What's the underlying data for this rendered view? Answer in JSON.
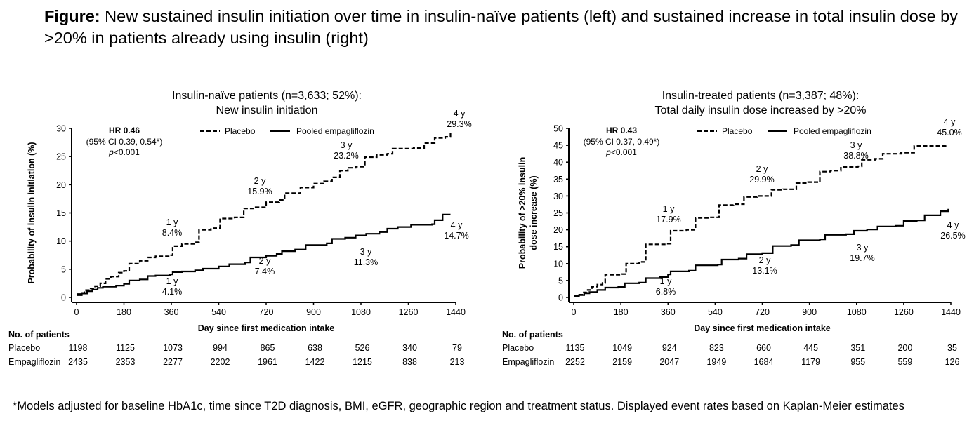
{
  "figure": {
    "title_bold": "Figure:",
    "title_text": " New sustained insulin initiation over time in insulin-naïve patients (left) and sustained increase in total insulin dose by >20% in patients already using insulin (right)",
    "footnote": "*Models adjusted for baseline HbA1c, time since T2D diagnosis, BMI, eGFR, geographic region and treatment status. Displayed event rates based on Kaplan-Meier estimates"
  },
  "chart_data": [
    {
      "type": "line",
      "title": [
        "Insulin-naïve patients (n=3,633; 52%):",
        "New insulin initiation"
      ],
      "xlabel": "Day since first medication intake",
      "ylabel": [
        "Probability of insulin initiation (%)"
      ],
      "xlim": [
        0,
        1440
      ],
      "ylim": [
        0,
        30
      ],
      "xticks": [
        0,
        180,
        360,
        540,
        720,
        900,
        1080,
        1260,
        1440
      ],
      "yticks": [
        0,
        5,
        10,
        15,
        20,
        25,
        30
      ],
      "legend": {
        "position": "top",
        "items": [
          {
            "name": "Placebo",
            "style": "dashed"
          },
          {
            "name": "Pooled empagliflozin",
            "style": "solid"
          }
        ]
      },
      "stats": {
        "hr": "HR 0.46",
        "ci": "(95% CI 0.39, 0.54*)",
        "p_italic": "p",
        "p_rest": "<0.001"
      },
      "series": [
        {
          "name": "Placebo",
          "style": "dashed",
          "points": [
            [
              0,
              0.6
            ],
            [
              20,
              0.8
            ],
            [
              30,
              1.3
            ],
            [
              50,
              1.6
            ],
            [
              70,
              2.0
            ],
            [
              90,
              2.5
            ],
            [
              110,
              3.3
            ],
            [
              130,
              3.7
            ],
            [
              160,
              4.4
            ],
            [
              180,
              4.7
            ],
            [
              200,
              6.0
            ],
            [
              240,
              6.5
            ],
            [
              270,
              7.1
            ],
            [
              300,
              7.3
            ],
            [
              355,
              7.5
            ],
            [
              365,
              9.1
            ],
            [
              400,
              9.5
            ],
            [
              450,
              9.8
            ],
            [
              465,
              12.0
            ],
            [
              510,
              12.3
            ],
            [
              545,
              14.0
            ],
            [
              600,
              14.2
            ],
            [
              635,
              15.8
            ],
            [
              680,
              16.0
            ],
            [
              720,
              16.9
            ],
            [
              770,
              17.3
            ],
            [
              790,
              18.5
            ],
            [
              850,
              19.5
            ],
            [
              900,
              20.2
            ],
            [
              940,
              20.6
            ],
            [
              970,
              21.3
            ],
            [
              1000,
              22.5
            ],
            [
              1030,
              23.0
            ],
            [
              1060,
              23.2
            ],
            [
              1095,
              24.9
            ],
            [
              1140,
              25.3
            ],
            [
              1180,
              25.5
            ],
            [
              1200,
              26.4
            ],
            [
              1280,
              26.5
            ],
            [
              1320,
              27.4
            ],
            [
              1360,
              28.3
            ],
            [
              1400,
              28.5
            ],
            [
              1420,
              29.3
            ]
          ]
        },
        {
          "name": "Pooled empagliflozin",
          "style": "solid",
          "points": [
            [
              0,
              0.4
            ],
            [
              20,
              0.7
            ],
            [
              40,
              1.1
            ],
            [
              60,
              1.4
            ],
            [
              80,
              1.7
            ],
            [
              100,
              1.9
            ],
            [
              150,
              2.1
            ],
            [
              180,
              2.4
            ],
            [
              200,
              3.0
            ],
            [
              240,
              3.2
            ],
            [
              270,
              3.8
            ],
            [
              300,
              3.9
            ],
            [
              355,
              4.1
            ],
            [
              365,
              4.5
            ],
            [
              400,
              4.6
            ],
            [
              450,
              4.8
            ],
            [
              480,
              5.1
            ],
            [
              540,
              5.5
            ],
            [
              580,
              5.9
            ],
            [
              640,
              6.2
            ],
            [
              660,
              7.1
            ],
            [
              720,
              7.4
            ],
            [
              760,
              7.7
            ],
            [
              780,
              8.2
            ],
            [
              830,
              8.5
            ],
            [
              870,
              9.3
            ],
            [
              950,
              9.6
            ],
            [
              970,
              10.4
            ],
            [
              1020,
              10.6
            ],
            [
              1060,
              11.0
            ],
            [
              1100,
              11.3
            ],
            [
              1150,
              11.6
            ],
            [
              1180,
              12.2
            ],
            [
              1220,
              12.5
            ],
            [
              1270,
              12.9
            ],
            [
              1350,
              13.0
            ],
            [
              1360,
              13.7
            ],
            [
              1390,
              14.7
            ],
            [
              1420,
              14.7
            ]
          ]
        }
      ],
      "annotations": [
        {
          "series": "Placebo",
          "label": "1 y",
          "value": "8.4%"
        },
        {
          "series": "Placebo",
          "label": "2 y",
          "value": "15.9%"
        },
        {
          "series": "Placebo",
          "label": "3 y",
          "value": "23.2%"
        },
        {
          "series": "Placebo",
          "label": "4 y",
          "value": "29.3%"
        },
        {
          "series": "Pooled empagliflozin",
          "label": "1 y",
          "value": "4.1%"
        },
        {
          "series": "Pooled empagliflozin",
          "label": "2 y",
          "value": "7.4%"
        },
        {
          "series": "Pooled empagliflozin",
          "label": "3 y",
          "value": "11.3%"
        },
        {
          "series": "Pooled empagliflozin",
          "label": "4 y",
          "value": "14.7%"
        }
      ],
      "risk_table": {
        "title": "No. of patients",
        "rows": [
          {
            "label": "Placebo",
            "values": [
              1198,
              1125,
              1073,
              994,
              865,
              638,
              526,
              340,
              79
            ]
          },
          {
            "label": "Empagliflozin",
            "values": [
              2435,
              2353,
              2277,
              2202,
              1961,
              1422,
              1215,
              838,
              213
            ]
          }
        ]
      }
    },
    {
      "type": "line",
      "title": [
        "Insulin-treated patients (n=3,387; 48%):",
        "Total daily insulin dose increased by >20%"
      ],
      "xlabel": "Day since first medication intake",
      "ylabel": [
        "Probability of >20% insulin",
        "dose increase (%)"
      ],
      "xlim": [
        0,
        1440
      ],
      "ylim": [
        0,
        50
      ],
      "xticks": [
        0,
        180,
        360,
        540,
        720,
        900,
        1080,
        1260,
        1440
      ],
      "yticks": [
        0,
        5,
        10,
        15,
        20,
        25,
        30,
        35,
        40,
        45,
        50
      ],
      "legend": {
        "position": "top",
        "items": [
          {
            "name": "Placebo",
            "style": "dashed"
          },
          {
            "name": "Pooled empagliflozin",
            "style": "solid"
          }
        ]
      },
      "stats": {
        "hr": "HR 0.43",
        "ci": "(95% CI 0.37, 0.49*)",
        "p_italic": "p",
        "p_rest": "<0.001"
      },
      "series": [
        {
          "name": "Placebo",
          "style": "dashed",
          "points": [
            [
              0,
              0.5
            ],
            [
              20,
              0.8
            ],
            [
              35,
              1.5
            ],
            [
              50,
              2.2
            ],
            [
              70,
              3.2
            ],
            [
              90,
              3.8
            ],
            [
              110,
              4.3
            ],
            [
              120,
              6.7
            ],
            [
              185,
              6.9
            ],
            [
              200,
              10.0
            ],
            [
              250,
              10.5
            ],
            [
              275,
              15.7
            ],
            [
              355,
              15.9
            ],
            [
              370,
              19.7
            ],
            [
              430,
              20.0
            ],
            [
              465,
              23.5
            ],
            [
              520,
              23.7
            ],
            [
              555,
              27.3
            ],
            [
              610,
              27.6
            ],
            [
              650,
              29.7
            ],
            [
              700,
              30.0
            ],
            [
              755,
              31.8
            ],
            [
              800,
              32.0
            ],
            [
              850,
              33.8
            ],
            [
              895,
              34.1
            ],
            [
              940,
              37.2
            ],
            [
              980,
              37.5
            ],
            [
              1020,
              38.6
            ],
            [
              1085,
              38.8
            ],
            [
              1100,
              40.7
            ],
            [
              1150,
              41.0
            ],
            [
              1180,
              42.5
            ],
            [
              1250,
              42.8
            ],
            [
              1300,
              44.8
            ],
            [
              1420,
              45.0
            ]
          ]
        },
        {
          "name": "Pooled empagliflozin",
          "style": "solid",
          "points": [
            [
              0,
              0.4
            ],
            [
              20,
              0.7
            ],
            [
              40,
              1.2
            ],
            [
              60,
              1.6
            ],
            [
              90,
              2.2
            ],
            [
              120,
              2.9
            ],
            [
              170,
              3.1
            ],
            [
              195,
              4.2
            ],
            [
              250,
              4.4
            ],
            [
              275,
              5.7
            ],
            [
              330,
              6.0
            ],
            [
              360,
              6.8
            ],
            [
              370,
              7.7
            ],
            [
              440,
              7.9
            ],
            [
              465,
              9.5
            ],
            [
              550,
              9.7
            ],
            [
              565,
              11.2
            ],
            [
              630,
              11.5
            ],
            [
              660,
              12.8
            ],
            [
              720,
              13.1
            ],
            [
              760,
              15.2
            ],
            [
              830,
              15.5
            ],
            [
              860,
              16.9
            ],
            [
              940,
              17.2
            ],
            [
              960,
              18.5
            ],
            [
              1040,
              18.7
            ],
            [
              1070,
              19.7
            ],
            [
              1120,
              20.1
            ],
            [
              1160,
              21.0
            ],
            [
              1230,
              21.2
            ],
            [
              1260,
              22.6
            ],
            [
              1310,
              22.8
            ],
            [
              1340,
              24.3
            ],
            [
              1400,
              25.5
            ],
            [
              1430,
              26.2
            ]
          ]
        }
      ],
      "annotations": [
        {
          "series": "Placebo",
          "label": "1 y",
          "value": "17.9%"
        },
        {
          "series": "Placebo",
          "label": "2 y",
          "value": "29.9%"
        },
        {
          "series": "Placebo",
          "label": "3 y",
          "value": "38.8%"
        },
        {
          "series": "Placebo",
          "label": "4 y",
          "value": "45.0%"
        },
        {
          "series": "Pooled empagliflozin",
          "label": "1 y",
          "value": "6.8%"
        },
        {
          "series": "Pooled empagliflozin",
          "label": "2 y",
          "value": "13.1%"
        },
        {
          "series": "Pooled empagliflozin",
          "label": "3 y",
          "value": "19.7%"
        },
        {
          "series": "Pooled empagliflozin",
          "label": "4 y",
          "value": "26.5%"
        }
      ],
      "risk_table": {
        "title": "No. of patients",
        "rows": [
          {
            "label": "Placebo",
            "values": [
              1135,
              1049,
              924,
              823,
              660,
              445,
              351,
              200,
              35
            ]
          },
          {
            "label": "Empagliflozin",
            "values": [
              2252,
              2159,
              2047,
              1949,
              1684,
              1179,
              955,
              559,
              126
            ]
          }
        ]
      }
    }
  ]
}
